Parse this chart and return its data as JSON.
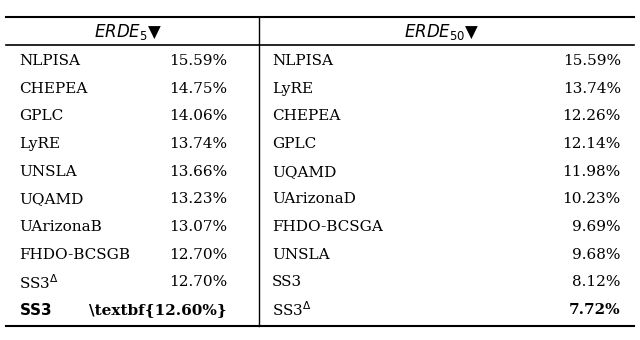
{
  "left_col1": [
    "NLPISA",
    "CHEPEA",
    "GPLC",
    "LyRE",
    "UNSLA",
    "UQAMD",
    "UArizonaB",
    "FHDO-BCSGB",
    "SS3$^{\\Delta}$",
    "SS3"
  ],
  "left_col2": [
    "15.59%",
    "14.75%",
    "14.06%",
    "13.74%",
    "13.66%",
    "13.23%",
    "13.07%",
    "12.70%",
    "12.70%",
    "12.60%"
  ],
  "left_bold": [
    false,
    false,
    false,
    false,
    false,
    false,
    false,
    false,
    false,
    true
  ],
  "right_col1": [
    "NLPISA",
    "LyRE",
    "CHEPEA",
    "GPLC",
    "UQAMD",
    "UArizonaD",
    "FHDO-BCSGA",
    "UNSLA",
    "SS3",
    "SS3$^{\\Delta}$"
  ],
  "right_col2": [
    "15.59%",
    "13.74%",
    "12.26%",
    "12.14%",
    "11.98%",
    "10.23%",
    "9.69%",
    "9.68%",
    "8.12%",
    "7.72%"
  ],
  "right_bold": [
    false,
    false,
    false,
    false,
    false,
    false,
    false,
    false,
    false,
    true
  ],
  "bg_color": "#ffffff",
  "text_color": "#000000",
  "fontsize": 11
}
